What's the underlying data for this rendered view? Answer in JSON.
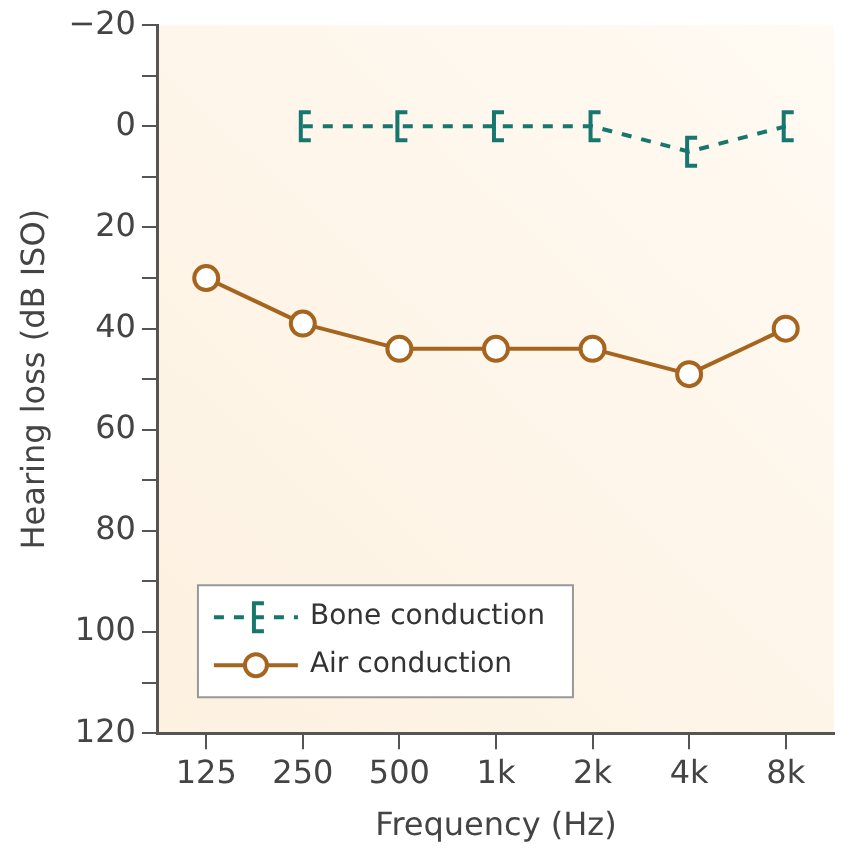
{
  "chart_data": {
    "type": "line",
    "xlabel": "Frequency (Hz)",
    "ylabel": "Hearing loss (dB ISO)",
    "categories": [
      "125",
      "250",
      "500",
      "1k",
      "2k",
      "4k",
      "8k"
    ],
    "series": [
      {
        "name": "Bone conduction",
        "color": "#17776f",
        "values": [
          null,
          0,
          0,
          0,
          0,
          5,
          0
        ],
        "line_style": "dashed",
        "marker": "cross"
      },
      {
        "name": "Air conduction",
        "color": "#a5651f",
        "values": [
          30,
          39,
          44,
          44,
          44,
          49,
          40
        ],
        "line_style": "solid",
        "marker": "circle"
      }
    ],
    "ylim": [
      120,
      -20
    ],
    "yticks": [
      {
        "value": -20,
        "label": "−20"
      },
      {
        "value": -10,
        "label": null
      },
      0,
      {
        "value": 10,
        "label": null
      },
      20,
      {
        "value": 30,
        "label": null
      },
      40,
      {
        "value": 50,
        "label": null
      },
      60,
      {
        "value": 70,
        "label": null
      },
      80,
      {
        "value": 90,
        "label": null
      },
      100,
      {
        "value": 110,
        "label": null
      },
      120
    ],
    "grid": false,
    "legend": "bottom left"
  }
}
